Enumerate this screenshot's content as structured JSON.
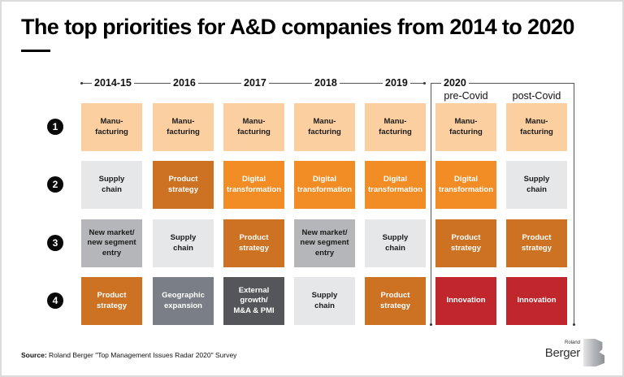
{
  "title": "The top priorities for A&D companies from 2014 to 2020",
  "columns": [
    {
      "year": "2014-15",
      "sub": ""
    },
    {
      "year": "2016",
      "sub": ""
    },
    {
      "year": "2017",
      "sub": ""
    },
    {
      "year": "2018",
      "sub": ""
    },
    {
      "year": "2019",
      "sub": ""
    },
    {
      "year": "2020",
      "sub": "pre-Covid"
    },
    {
      "year": "",
      "sub": "post-Covid"
    }
  ],
  "ranks": [
    "1",
    "2",
    "3",
    "4"
  ],
  "colors": {
    "manufacturing": "#FCCFA0",
    "supply_chain": "#E6E7E9",
    "product_strategy": "#CC7222",
    "digital_transformation": "#F28D26",
    "new_market": "#B4B6BA",
    "geographic_expansion": "#7A7F87",
    "external_growth": "#545659",
    "innovation": "#C0272D"
  },
  "grid": [
    [
      {
        "label": "Manu-\nfacturing",
        "cat": "manufacturing"
      },
      {
        "label": "Manu-\nfacturing",
        "cat": "manufacturing"
      },
      {
        "label": "Manu-\nfacturing",
        "cat": "manufacturing"
      },
      {
        "label": "Manu-\nfacturing",
        "cat": "manufacturing"
      },
      {
        "label": "Manu-\nfacturing",
        "cat": "manufacturing"
      },
      {
        "label": "Manu-\nfacturing",
        "cat": "manufacturing"
      },
      {
        "label": "Manu-\nfacturing",
        "cat": "manufacturing"
      }
    ],
    [
      {
        "label": "Supply\nchain",
        "cat": "supply_chain"
      },
      {
        "label": "Product\nstrategy",
        "cat": "product_strategy"
      },
      {
        "label": "Digital\ntransformation",
        "cat": "digital_transformation"
      },
      {
        "label": "Digital\ntransformation",
        "cat": "digital_transformation"
      },
      {
        "label": "Digital\ntransformation",
        "cat": "digital_transformation"
      },
      {
        "label": "Digital\ntransformation",
        "cat": "digital_transformation"
      },
      {
        "label": "Supply\nchain",
        "cat": "supply_chain"
      }
    ],
    [
      {
        "label": "New market/\nnew segment\nentry",
        "cat": "new_market"
      },
      {
        "label": "Supply\nchain",
        "cat": "supply_chain"
      },
      {
        "label": "Product\nstrategy",
        "cat": "product_strategy"
      },
      {
        "label": "New market/\nnew segment\nentry",
        "cat": "new_market"
      },
      {
        "label": "Supply\nchain",
        "cat": "supply_chain"
      },
      {
        "label": "Product\nstrategy",
        "cat": "product_strategy"
      },
      {
        "label": "Product\nstrategy",
        "cat": "product_strategy"
      }
    ],
    [
      {
        "label": "Product\nstrategy",
        "cat": "product_strategy"
      },
      {
        "label": "Geographic\nexpansion",
        "cat": "geographic_expansion"
      },
      {
        "label": "External\ngrowth/\nM&A & PMI",
        "cat": "external_growth"
      },
      {
        "label": "Supply\nchain",
        "cat": "supply_chain"
      },
      {
        "label": "Product\nstrategy",
        "cat": "product_strategy"
      },
      {
        "label": "Innovation",
        "cat": "innovation"
      },
      {
        "label": "Innovation",
        "cat": "innovation"
      }
    ]
  ],
  "source": {
    "label": "Source:",
    "text": " Roland Berger \"Top Management Issues Radar 2020\" Survey"
  },
  "logo": {
    "small": "Roland",
    "big": "Berger"
  }
}
